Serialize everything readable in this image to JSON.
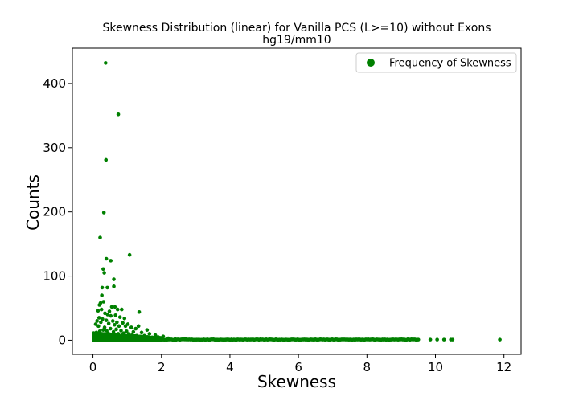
{
  "chart_data": {
    "type": "scatter",
    "title": "Skewness Distribution (linear) for Vanilla PCS (L>=10) without Exons",
    "subtitle": "hg19/mm10",
    "xlabel": "Skewness",
    "ylabel": "Counts",
    "xlim": [
      -0.6,
      12.5
    ],
    "ylim": [
      -22,
      455
    ],
    "x_ticks": [
      0,
      2,
      4,
      6,
      8,
      10,
      12
    ],
    "y_ticks": [
      0,
      100,
      200,
      300,
      400
    ],
    "grid": false,
    "legend_position": "top-right",
    "series": [
      {
        "name": "Frequency of Skewness",
        "color": "#008000",
        "points": [
          [
            0.37,
            432
          ],
          [
            0.74,
            352
          ],
          [
            0.38,
            281
          ],
          [
            0.32,
            199
          ],
          [
            0.21,
            160
          ],
          [
            1.07,
            133
          ],
          [
            0.39,
            127
          ],
          [
            0.52,
            124
          ],
          [
            0.3,
            111
          ],
          [
            0.33,
            105
          ],
          [
            0.61,
            95
          ],
          [
            0.27,
            82
          ],
          [
            0.42,
            82
          ],
          [
            0.61,
            84
          ],
          [
            0.26,
            70
          ],
          [
            0.22,
            58
          ],
          [
            0.19,
            55
          ],
          [
            0.31,
            60
          ],
          [
            0.64,
            52
          ],
          [
            0.72,
            48
          ],
          [
            0.55,
            52
          ],
          [
            0.84,
            48
          ],
          [
            1.35,
            44
          ],
          [
            0.25,
            48
          ],
          [
            0.48,
            45
          ],
          [
            0.15,
            46
          ],
          [
            0.35,
            42
          ],
          [
            0.43,
            40
          ],
          [
            0.52,
            38
          ],
          [
            0.66,
            39
          ],
          [
            0.79,
            36
          ],
          [
            0.92,
            34
          ],
          [
            0.18,
            35
          ],
          [
            0.28,
            33
          ],
          [
            0.39,
            31
          ],
          [
            0.58,
            30
          ],
          [
            0.7,
            28
          ],
          [
            0.87,
            27
          ],
          [
            1.02,
            25
          ],
          [
            0.12,
            30
          ],
          [
            0.23,
            28
          ],
          [
            0.46,
            26
          ],
          [
            0.63,
            24
          ],
          [
            0.76,
            22
          ],
          [
            0.95,
            22
          ],
          [
            1.12,
            20
          ],
          [
            1.25,
            18
          ],
          [
            1.58,
            16
          ],
          [
            1.33,
            22
          ],
          [
            0.08,
            25
          ],
          [
            0.16,
            22
          ],
          [
            0.34,
            20
          ],
          [
            0.51,
            18
          ],
          [
            0.68,
            17
          ],
          [
            0.82,
            15
          ],
          [
            0.98,
            14
          ],
          [
            1.18,
            13
          ],
          [
            1.42,
            12
          ],
          [
            1.65,
            10
          ],
          [
            1.82,
            8
          ],
          [
            2.05,
            6
          ],
          [
            0.1,
            12
          ],
          [
            0.2,
            14
          ],
          [
            0.3,
            16
          ],
          [
            0.4,
            15
          ],
          [
            0.6,
            13
          ],
          [
            0.9,
            11
          ],
          [
            1.05,
            10
          ],
          [
            1.5,
            7
          ],
          [
            1.9,
            5
          ],
          [
            0.05,
            8
          ],
          [
            0.14,
            10
          ],
          [
            0.44,
            11
          ],
          [
            0.57,
            9
          ],
          [
            0.74,
            10
          ],
          [
            0.88,
            9
          ],
          [
            1.15,
            8
          ],
          [
            1.28,
            7
          ],
          [
            1.7,
            4
          ],
          [
            2.2,
            3
          ],
          [
            1.0,
            4
          ],
          [
            0.5,
            5
          ],
          [
            0.25,
            6
          ],
          [
            0.8,
            6
          ],
          [
            1.4,
            3
          ],
          [
            2.4,
            2
          ],
          [
            2.7,
            2
          ],
          [
            3.1,
            1
          ],
          [
            9.25,
            1
          ],
          [
            9.5,
            1
          ],
          [
            9.85,
            1
          ],
          [
            10.05,
            1
          ],
          [
            10.25,
            1
          ],
          [
            10.45,
            1
          ],
          [
            10.5,
            1
          ],
          [
            11.88,
            1
          ]
        ],
        "dense_band": {
          "x_range": [
            0.02,
            9.5
          ],
          "y_value": 1
        },
        "dense_cluster": {
          "x_range": [
            0.02,
            2.0
          ],
          "y_range": [
            0,
            12
          ]
        }
      }
    ]
  }
}
